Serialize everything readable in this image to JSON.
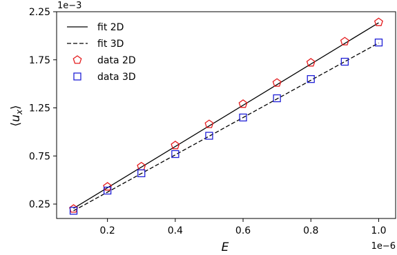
{
  "chart_data": {
    "type": "line",
    "xlabel": "E",
    "ylabel": "⟨u_x⟩",
    "x_offset_label": "1e−6",
    "y_offset_label": "1e−3",
    "x_scale_exponent": -6,
    "y_scale_exponent": -3,
    "xlim": [
      0.05,
      1.05
    ],
    "ylim": [
      0.1,
      2.25
    ],
    "xticks": [
      0.2,
      0.4,
      0.6,
      0.8,
      1.0
    ],
    "xtick_labels": [
      "0.2",
      "0.4",
      "0.6",
      "0.8",
      "1.0"
    ],
    "yticks": [
      0.25,
      0.75,
      1.25,
      1.75,
      2.25
    ],
    "ytick_labels": [
      "0.25",
      "0.75",
      "1.25",
      "1.75",
      "2.25"
    ],
    "grid": false,
    "legend_position": "top-left",
    "series": [
      {
        "name": "fit 2D",
        "kind": "line",
        "style": "solid",
        "color": "#000000",
        "x": [
          0.1,
          1.0
        ],
        "y": [
          0.205,
          2.135
        ]
      },
      {
        "name": "fit 3D",
        "kind": "line",
        "style": "dashed",
        "color": "#000000",
        "x": [
          0.1,
          1.0
        ],
        "y": [
          0.18,
          1.925
        ]
      },
      {
        "name": "data 2D",
        "kind": "scatter",
        "marker": "pentagon",
        "color": "#e41a1c",
        "x": [
          0.1,
          0.2,
          0.3,
          0.4,
          0.5,
          0.6,
          0.7,
          0.8,
          0.9,
          1.0
        ],
        "y": [
          0.2,
          0.43,
          0.64,
          0.86,
          1.08,
          1.29,
          1.51,
          1.72,
          1.94,
          2.14
        ]
      },
      {
        "name": "data 3D",
        "kind": "scatter",
        "marker": "square",
        "color": "#1f1fd6",
        "x": [
          0.1,
          0.2,
          0.3,
          0.4,
          0.5,
          0.6,
          0.7,
          0.8,
          0.9,
          1.0
        ],
        "y": [
          0.18,
          0.39,
          0.57,
          0.77,
          0.96,
          1.15,
          1.35,
          1.55,
          1.73,
          1.93
        ]
      }
    ]
  }
}
